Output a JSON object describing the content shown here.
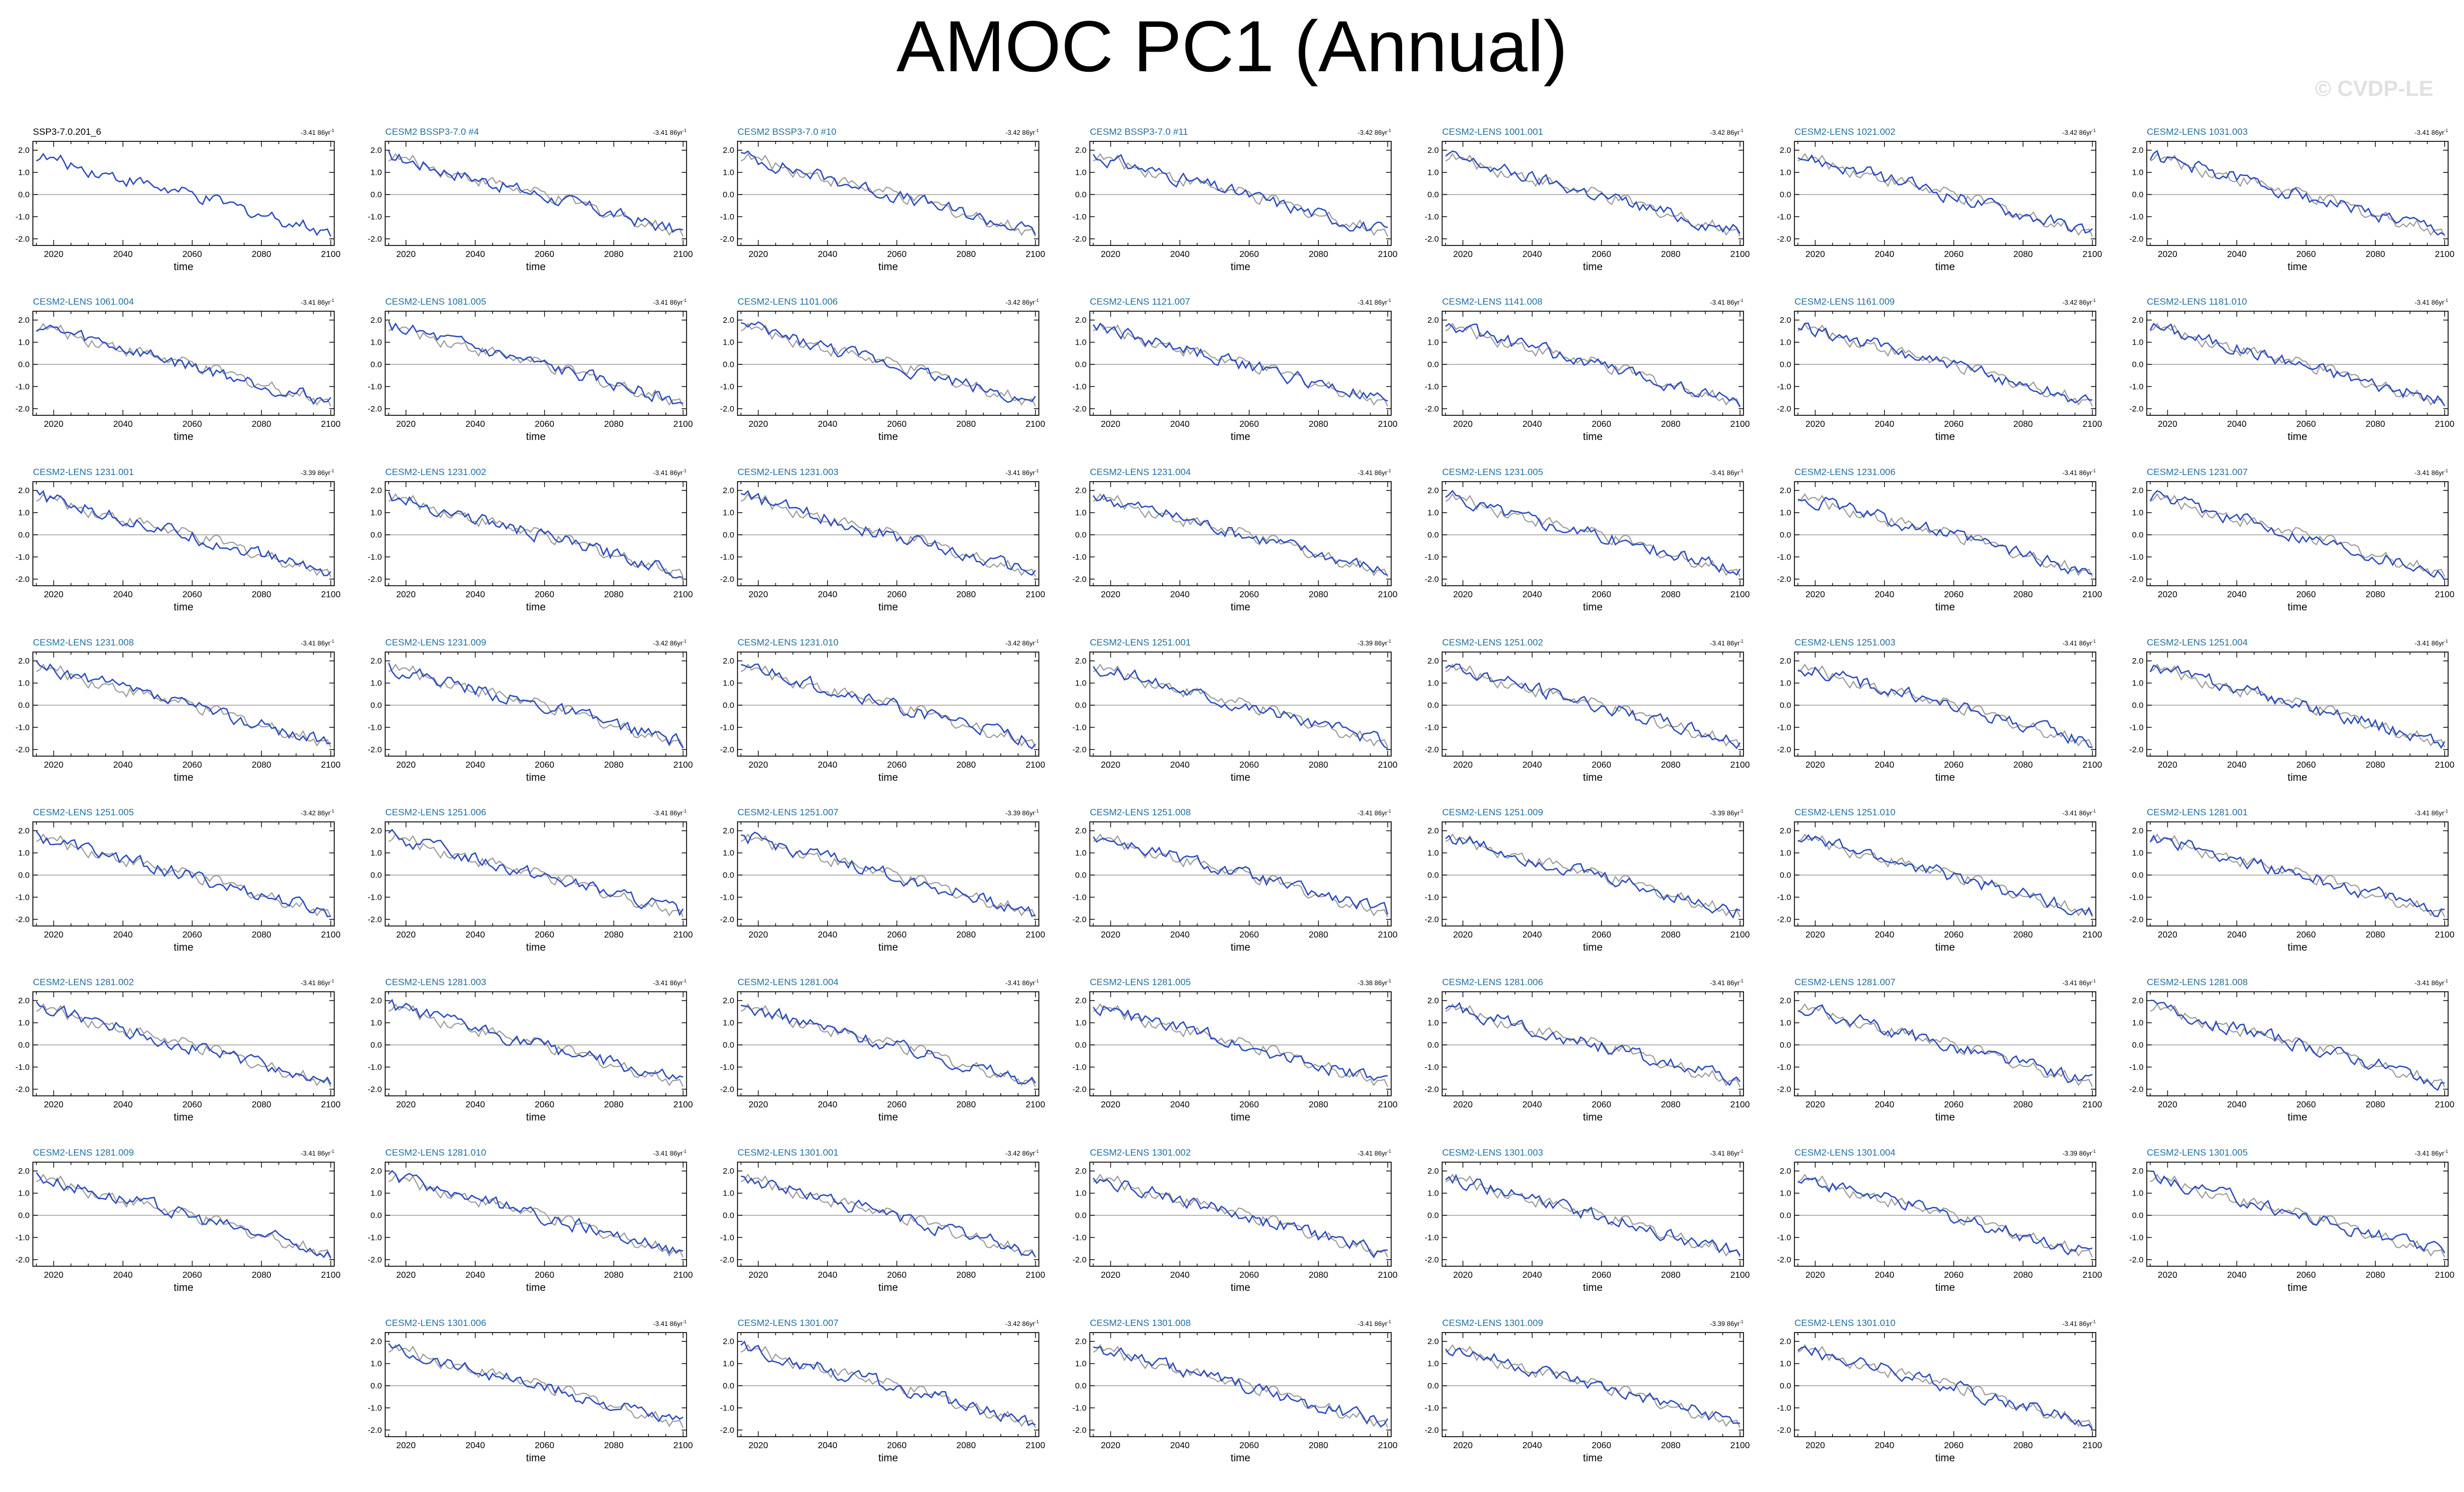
{
  "figure": {
    "title": "AMOC PC1 (Annual)",
    "watermark": "© CVDP-LE"
  },
  "colors": {
    "obs_line": "#999999",
    "model_line": "#2a4bbd",
    "zero_line": "#aaaaaa",
    "label_obs": "#000000",
    "label_model": "#1f6fa0"
  },
  "chart_data": {
    "type": "line",
    "xlabel": "time",
    "xlim": [
      2014,
      2101
    ],
    "ylim": [
      -2.3,
      2.4
    ],
    "xticks": [
      2020,
      2040,
      2060,
      2080,
      2100
    ],
    "yticks": [
      "2.0",
      "1.0",
      "0.0",
      "-1.0",
      "-2.0"
    ],
    "reference": "SSP3-7.0.201_6",
    "panels": [
      {
        "label": "SSP3-7.0.201_6",
        "trend": "-3.41",
        "seed": 1
      },
      {
        "label": "CESM2 BSSP3-7.0 #4",
        "trend": "-3.41",
        "seed": 2
      },
      {
        "label": "CESM2 BSSP3-7.0 #10",
        "trend": "-3.42",
        "seed": 3
      },
      {
        "label": "CESM2 BSSP3-7.0 #11",
        "trend": "-3.42",
        "seed": 4
      },
      {
        "label": "CESM2-LENS 1001.001",
        "trend": "-3.42",
        "seed": 5
      },
      {
        "label": "CESM2-LENS 1021.002",
        "trend": "-3.42",
        "seed": 6
      },
      {
        "label": "CESM2-LENS 1031.003",
        "trend": "-3.41",
        "seed": 7
      },
      {
        "label": "CESM2-LENS 1061.004",
        "trend": "-3.41",
        "seed": 8
      },
      {
        "label": "CESM2-LENS 1081.005",
        "trend": "-3.41",
        "seed": 9
      },
      {
        "label": "CESM2-LENS 1101.006",
        "trend": "-3.42",
        "seed": 10
      },
      {
        "label": "CESM2-LENS 1121.007",
        "trend": "-3.41",
        "seed": 11
      },
      {
        "label": "CESM2-LENS 1141.008",
        "trend": "-3.41",
        "seed": 12
      },
      {
        "label": "CESM2-LENS 1161.009",
        "trend": "-3.42",
        "seed": 13
      },
      {
        "label": "CESM2-LENS 1181.010",
        "trend": "-3.41",
        "seed": 14
      },
      {
        "label": "CESM2-LENS 1231.001",
        "trend": "-3.39",
        "seed": 15
      },
      {
        "label": "CESM2-LENS 1231.002",
        "trend": "-3.41",
        "seed": 16
      },
      {
        "label": "CESM2-LENS 1231.003",
        "trend": "-3.41",
        "seed": 17
      },
      {
        "label": "CESM2-LENS 1231.004",
        "trend": "-3.41",
        "seed": 18
      },
      {
        "label": "CESM2-LENS 1231.005",
        "trend": "-3.41",
        "seed": 19
      },
      {
        "label": "CESM2-LENS 1231.006",
        "trend": "-3.41",
        "seed": 20
      },
      {
        "label": "CESM2-LENS 1231.007",
        "trend": "-3.41",
        "seed": 21
      },
      {
        "label": "CESM2-LENS 1231.008",
        "trend": "-3.41",
        "seed": 22
      },
      {
        "label": "CESM2-LENS 1231.009",
        "trend": "-3.42",
        "seed": 23
      },
      {
        "label": "CESM2-LENS 1231.010",
        "trend": "-3.42",
        "seed": 24
      },
      {
        "label": "CESM2-LENS 1251.001",
        "trend": "-3.39",
        "seed": 25
      },
      {
        "label": "CESM2-LENS 1251.002",
        "trend": "-3.41",
        "seed": 26
      },
      {
        "label": "CESM2-LENS 1251.003",
        "trend": "-3.41",
        "seed": 27
      },
      {
        "label": "CESM2-LENS 1251.004",
        "trend": "-3.41",
        "seed": 28
      },
      {
        "label": "CESM2-LENS 1251.005",
        "trend": "-3.42",
        "seed": 29
      },
      {
        "label": "CESM2-LENS 1251.006",
        "trend": "-3.41",
        "seed": 30
      },
      {
        "label": "CESM2-LENS 1251.007",
        "trend": "-3.39",
        "seed": 31
      },
      {
        "label": "CESM2-LENS 1251.008",
        "trend": "-3.41",
        "seed": 32
      },
      {
        "label": "CESM2-LENS 1251.009",
        "trend": "-3.39",
        "seed": 33
      },
      {
        "label": "CESM2-LENS 1251.010",
        "trend": "-3.41",
        "seed": 34
      },
      {
        "label": "CESM2-LENS 1281.001",
        "trend": "-3.41",
        "seed": 35
      },
      {
        "label": "CESM2-LENS 1281.002",
        "trend": "-3.41",
        "seed": 36
      },
      {
        "label": "CESM2-LENS 1281.003",
        "trend": "-3.41",
        "seed": 37
      },
      {
        "label": "CESM2-LENS 1281.004",
        "trend": "-3.41",
        "seed": 38
      },
      {
        "label": "CESM2-LENS 1281.005",
        "trend": "-3.38",
        "seed": 39
      },
      {
        "label": "CESM2-LENS 1281.006",
        "trend": "-3.41",
        "seed": 40
      },
      {
        "label": "CESM2-LENS 1281.007",
        "trend": "-3.41",
        "seed": 41
      },
      {
        "label": "CESM2-LENS 1281.008",
        "trend": "-3.41",
        "seed": 42
      },
      {
        "label": "CESM2-LENS 1281.009",
        "trend": "-3.41",
        "seed": 43
      },
      {
        "label": "CESM2-LENS 1281.010",
        "trend": "-3.41",
        "seed": 44
      },
      {
        "label": "CESM2-LENS 1301.001",
        "trend": "-3.42",
        "seed": 45
      },
      {
        "label": "CESM2-LENS 1301.002",
        "trend": "-3.41",
        "seed": 46
      },
      {
        "label": "CESM2-LENS 1301.003",
        "trend": "-3.41",
        "seed": 47
      },
      {
        "label": "CESM2-LENS 1301.004",
        "trend": "-3.39",
        "seed": 48
      },
      {
        "label": "CESM2-LENS 1301.005",
        "trend": "-3.41",
        "seed": 49
      },
      {
        "label": "CESM2-LENS 1301.006",
        "trend": "-3.41",
        "seed": 50
      },
      {
        "label": "CESM2-LENS 1301.007",
        "trend": "-3.42",
        "seed": 51
      },
      {
        "label": "CESM2-LENS 1301.008",
        "trend": "-3.41",
        "seed": 52
      },
      {
        "label": "CESM2-LENS 1301.009",
        "trend": "-3.39",
        "seed": 53
      },
      {
        "label": "CESM2-LENS 1301.010",
        "trend": "-3.41",
        "seed": 54
      }
    ],
    "trend_units": "86yr"
  }
}
